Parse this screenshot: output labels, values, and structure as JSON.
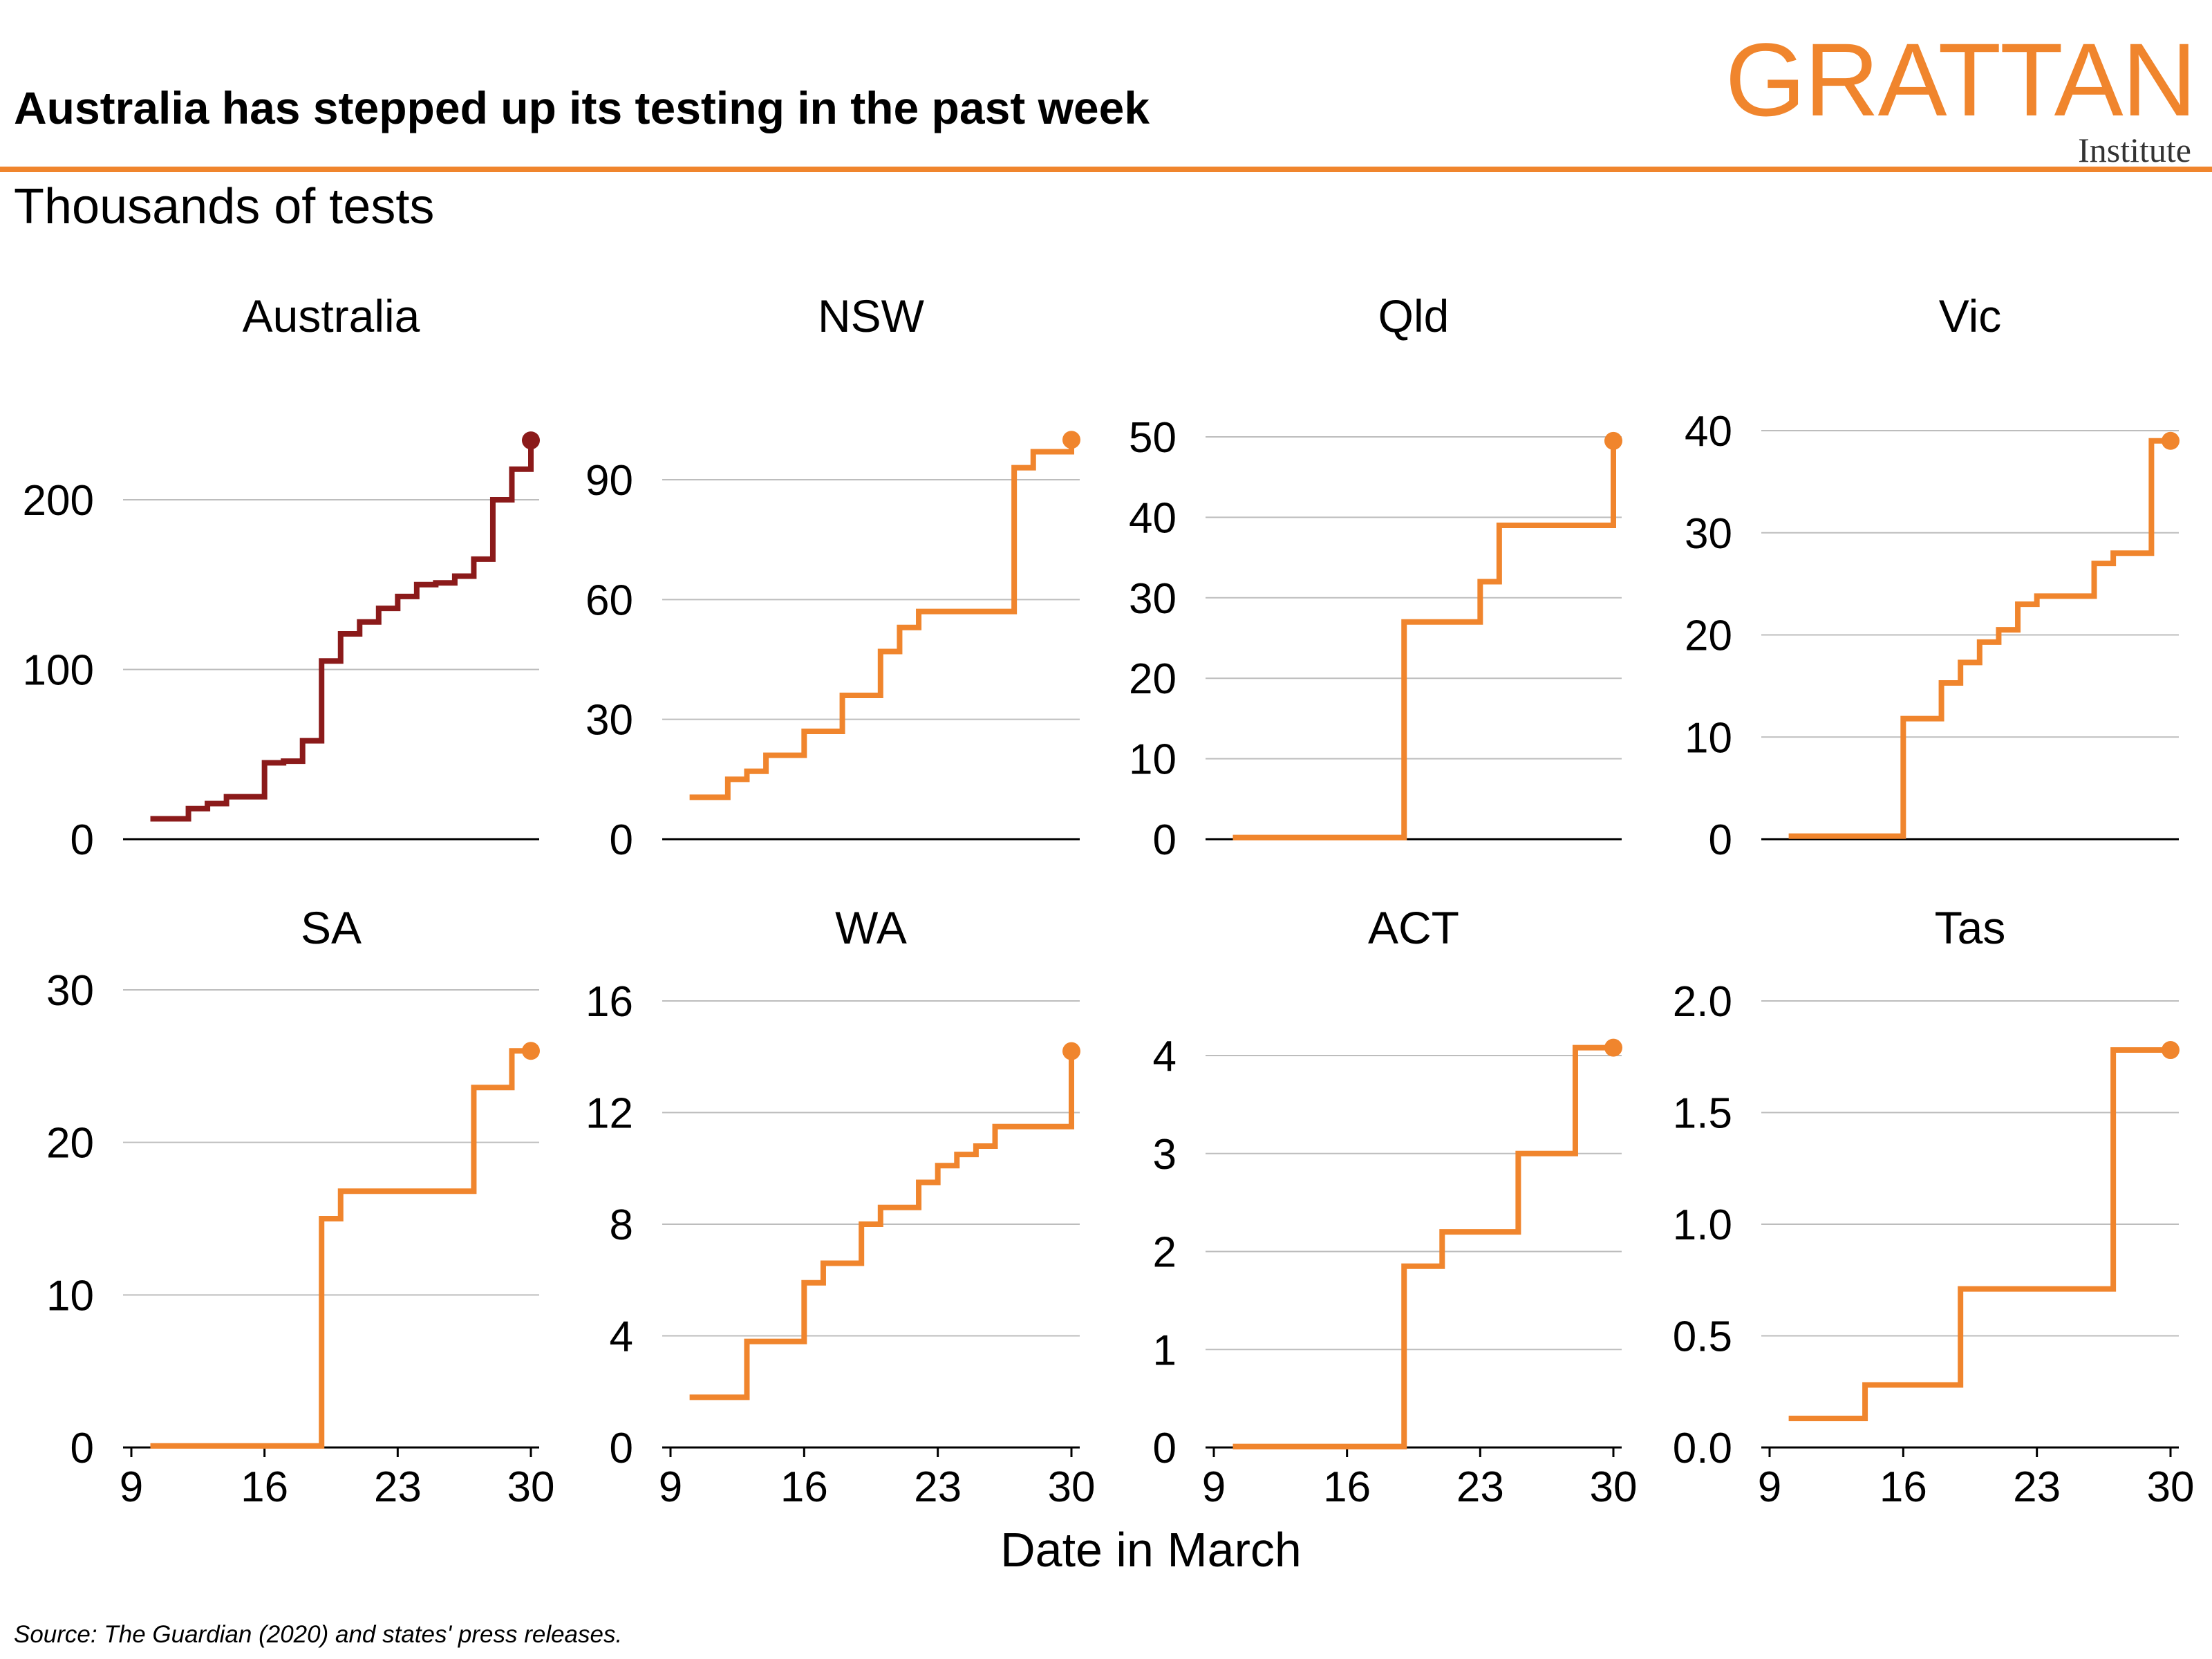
{
  "header": {
    "title": "Australia has stepped up its testing in the past week",
    "subtitle": "Thousands of tests"
  },
  "logo": {
    "main": "GRATTAN",
    "sub": "Institute"
  },
  "x_axis_label": "Date in March",
  "source": "Source: The Guardian (2020) and states' press releases.",
  "colors": {
    "accent": "#F0852D",
    "australia": "#8B1A1A",
    "grid": "#BDBDBD",
    "axis": "#000000"
  },
  "chart_data": [
    {
      "type": "line",
      "step": "post",
      "title": "Australia",
      "color": "#8B1A1A",
      "xlim": [
        9,
        30
      ],
      "ylim": [
        0,
        200
      ],
      "yticks": [
        0,
        100,
        200
      ],
      "ytick_labels": [
        "0",
        "100",
        "200"
      ],
      "xticks": [
        9,
        16,
        23,
        30
      ],
      "xtick_labels": [
        "9",
        "16",
        "23",
        "30"
      ],
      "x": [
        10,
        12,
        13,
        14,
        16,
        17,
        18,
        19,
        20,
        21,
        22,
        23,
        24,
        25,
        26,
        27,
        28,
        29,
        30
      ],
      "y": [
        12,
        18,
        21,
        25,
        45,
        46,
        58,
        105,
        121,
        128,
        136,
        143,
        150,
        151,
        155,
        165,
        200,
        218,
        235
      ]
    },
    {
      "type": "line",
      "step": "post",
      "title": "NSW",
      "color": "#F0852D",
      "xlim": [
        9,
        30
      ],
      "ylim": [
        0,
        90
      ],
      "yticks": [
        0,
        30,
        60,
        90
      ],
      "ytick_labels": [
        "0",
        "30",
        "60",
        "90"
      ],
      "xticks": [
        9,
        16,
        23,
        30
      ],
      "xtick_labels": [
        "9",
        "16",
        "23",
        "30"
      ],
      "x": [
        10,
        12,
        13,
        14,
        16,
        18,
        20,
        21,
        22,
        26,
        27,
        28,
        30
      ],
      "y": [
        10.5,
        15,
        17,
        21,
        27,
        36,
        47,
        53,
        57,
        57,
        93,
        97,
        100
      ]
    },
    {
      "type": "line",
      "step": "post",
      "title": "Qld",
      "color": "#F0852D",
      "xlim": [
        9,
        30
      ],
      "ylim": [
        0,
        50
      ],
      "yticks": [
        0,
        10,
        20,
        30,
        40,
        50
      ],
      "ytick_labels": [
        "0",
        "10",
        "20",
        "30",
        "40",
        "50"
      ],
      "xticks": [
        9,
        16,
        23,
        30
      ],
      "xtick_labels": [
        "9",
        "16",
        "23",
        "30"
      ],
      "x": [
        10,
        19,
        23,
        24,
        30
      ],
      "y": [
        0.2,
        27,
        32,
        39,
        49.5
      ]
    },
    {
      "type": "line",
      "step": "post",
      "title": "Vic",
      "color": "#F0852D",
      "xlim": [
        9,
        30
      ],
      "ylim": [
        0,
        40
      ],
      "yticks": [
        0,
        10,
        20,
        30,
        40
      ],
      "ytick_labels": [
        "0",
        "10",
        "20",
        "30",
        "40"
      ],
      "xticks": [
        9,
        16,
        23,
        30
      ],
      "xtick_labels": [
        "9",
        "16",
        "23",
        "30"
      ],
      "x": [
        10,
        16,
        18,
        19,
        20,
        21,
        22,
        23,
        26,
        27,
        29,
        30
      ],
      "y": [
        0.3,
        11.8,
        15.3,
        17.3,
        19.3,
        20.5,
        23,
        23.8,
        27,
        28,
        39,
        39
      ]
    },
    {
      "type": "line",
      "step": "post",
      "title": "SA",
      "color": "#F0852D",
      "xlim": [
        9,
        30
      ],
      "ylim": [
        0,
        30
      ],
      "yticks": [
        0,
        10,
        20,
        30
      ],
      "ytick_labels": [
        "0",
        "10",
        "20",
        "30"
      ],
      "xticks": [
        9,
        16,
        23,
        30
      ],
      "xtick_labels": [
        "9",
        "16",
        "23",
        "30"
      ],
      "x": [
        10,
        19,
        20,
        27,
        29,
        30
      ],
      "y": [
        0.1,
        15,
        16.8,
        23.6,
        26,
        26
      ]
    },
    {
      "type": "line",
      "step": "post",
      "title": "WA",
      "color": "#F0852D",
      "xlim": [
        9,
        30
      ],
      "ylim": [
        0,
        16
      ],
      "yticks": [
        0,
        4,
        8,
        12,
        16
      ],
      "ytick_labels": [
        "0",
        "4",
        "8",
        "12",
        "16"
      ],
      "xticks": [
        9,
        16,
        23,
        30
      ],
      "xtick_labels": [
        "9",
        "16",
        "23",
        "30"
      ],
      "x": [
        10,
        13,
        16,
        17,
        19,
        20,
        22,
        23,
        24,
        25,
        26,
        30
      ],
      "y": [
        1.8,
        3.8,
        5.9,
        6.6,
        8,
        8.6,
        9.5,
        10.1,
        10.5,
        10.8,
        11.5,
        14.2
      ]
    },
    {
      "type": "line",
      "step": "post",
      "title": "ACT",
      "color": "#F0852D",
      "xlim": [
        9,
        30
      ],
      "ylim": [
        0,
        4
      ],
      "yticks": [
        0,
        1,
        2,
        3,
        4
      ],
      "ytick_labels": [
        "0",
        "1",
        "2",
        "3",
        "4"
      ],
      "xticks": [
        9,
        16,
        23,
        30
      ],
      "xtick_labels": [
        "9",
        "16",
        "23",
        "30"
      ],
      "x": [
        10,
        19,
        21,
        25,
        28,
        30
      ],
      "y": [
        0.01,
        1.85,
        2.2,
        3,
        4.08,
        4.08
      ]
    },
    {
      "type": "line",
      "step": "post",
      "title": "Tas",
      "color": "#F0852D",
      "xlim": [
        9,
        30
      ],
      "ylim": [
        0,
        2
      ],
      "yticks": [
        0,
        0.5,
        1,
        1.5,
        2
      ],
      "ytick_labels": [
        "0.0",
        "0.5",
        "1.0",
        "1.5",
        "2.0"
      ],
      "xticks": [
        9,
        16,
        23,
        30
      ],
      "xtick_labels": [
        "9",
        "16",
        "23",
        "30"
      ],
      "x": [
        10,
        14,
        19,
        27,
        30
      ],
      "y": [
        0.13,
        0.28,
        0.71,
        1.78,
        1.78
      ]
    }
  ]
}
